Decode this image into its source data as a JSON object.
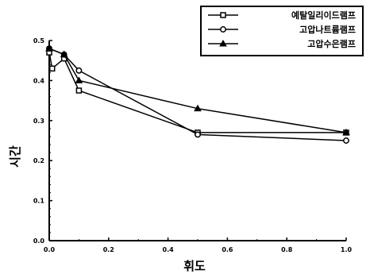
{
  "chart_data": {
    "type": "line",
    "xlabel": "휘도",
    "ylabel": "시간",
    "xlim": [
      0.0,
      1.0
    ],
    "ylim": [
      0.0,
      0.5
    ],
    "xticks": [
      "0.0",
      "0.2",
      "0.4",
      "0.6",
      "0.8",
      "1.0"
    ],
    "yticks": [
      "0.0",
      "0.1",
      "0.2",
      "0.3",
      "0.4",
      "0.5"
    ],
    "grid": false,
    "legend_position": "top-right",
    "series": [
      {
        "name": "예탈일리이드램프",
        "marker": "square",
        "x": [
          0.0,
          0.01,
          0.05,
          0.1,
          0.5,
          1.0
        ],
        "y": [
          0.47,
          0.43,
          0.455,
          0.375,
          0.27,
          0.27
        ]
      },
      {
        "name": "고압나트륨램프",
        "marker": "circle",
        "x": [
          0.0,
          0.05,
          0.1,
          0.5,
          1.0
        ],
        "y": [
          0.48,
          0.465,
          0.425,
          0.265,
          0.25
        ]
      },
      {
        "name": "고압수은램프",
        "marker": "triangle",
        "x": [
          0.0,
          0.05,
          0.1,
          0.5,
          1.0
        ],
        "y": [
          0.48,
          0.465,
          0.4,
          0.33,
          0.27
        ]
      }
    ]
  }
}
